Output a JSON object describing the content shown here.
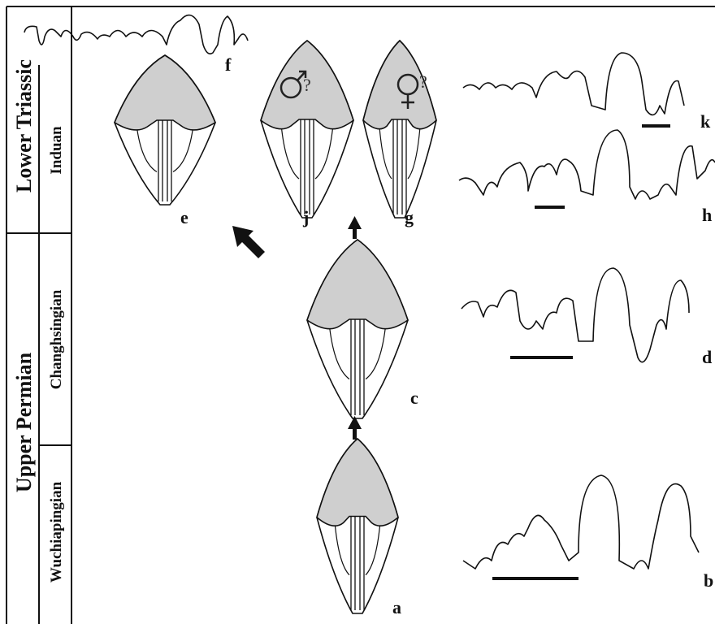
{
  "stratigraphy": {
    "systems": [
      "Lower Triassic",
      "Upper Permian"
    ],
    "stages": [
      "Induan",
      "Changhsingian",
      "Wuchiapingian"
    ]
  },
  "panels": {
    "labels": [
      "a",
      "b",
      "c",
      "d",
      "e",
      "f",
      "g",
      "h",
      "j",
      "k"
    ]
  },
  "annotations": {
    "male_query": "?",
    "female_query": "?"
  }
}
